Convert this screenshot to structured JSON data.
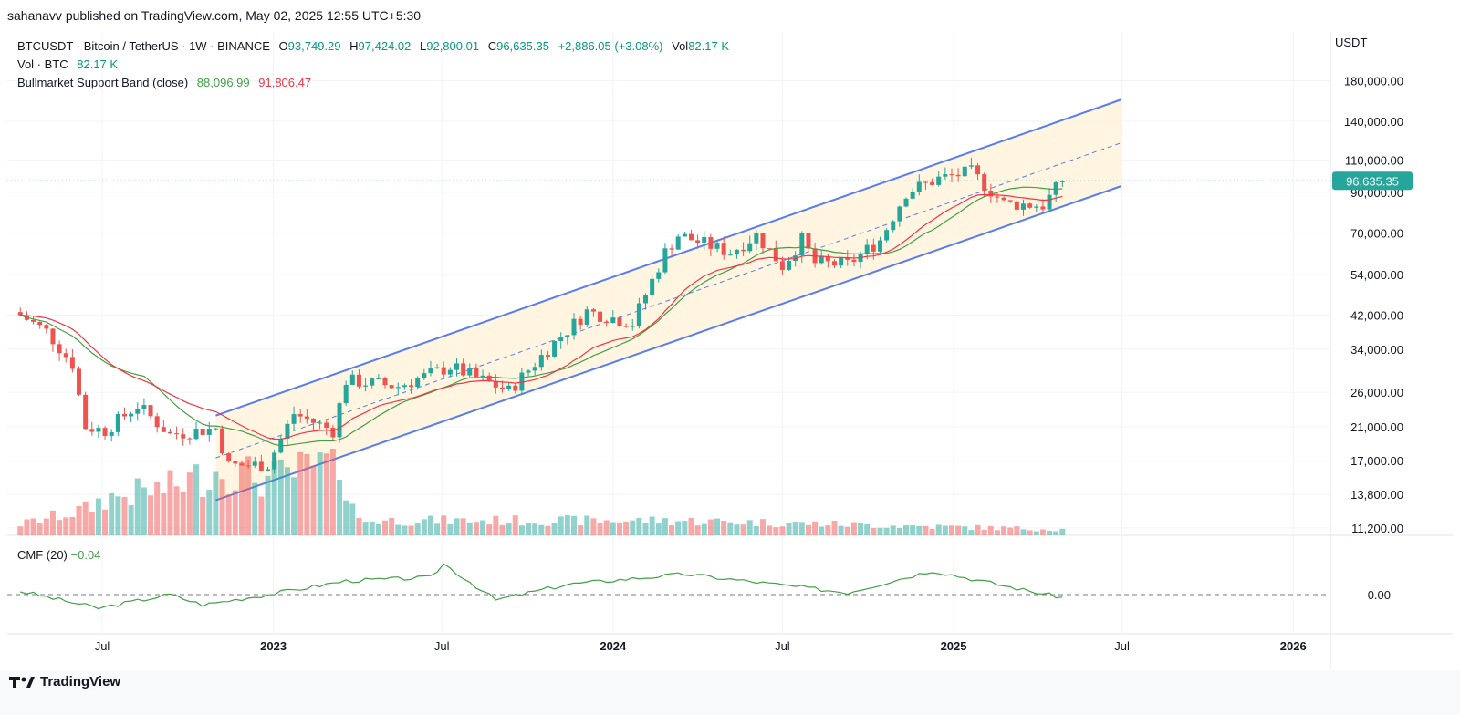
{
  "header": {
    "published": "sahanavv published on TradingView.com, May 02, 2025 12:55 UTC+5:30"
  },
  "legend": {
    "symbol": "BTCUSDT · Bitcoin / TetherUS · 1W · BINANCE",
    "o_label": "O",
    "o": "93,749.29",
    "h_label": "H",
    "h": "97,424.02",
    "l_label": "L",
    "l": "92,800.01",
    "c_label": "C",
    "c": "96,635.35",
    "change": "+2,886.05 (+3.08%)",
    "vol_label": "Vol",
    "vol": "82.17 K",
    "vol_series": "Vol · BTC",
    "vol_value": "82.17 K",
    "band_name": "Bullmarket Support Band (close)",
    "band_sma": "88,096.99",
    "band_ema": "91,806.47"
  },
  "cmf": {
    "label": "CMF (20)",
    "value": "−0.04"
  },
  "footer": {
    "brand": "TradingView"
  },
  "chart_data": {
    "type": "candlestick",
    "currency": "USDT",
    "y_scale": "log",
    "last_price_label": "96,635.35",
    "last_price": 96635.35,
    "y_ticks": [
      {
        "v": 180000,
        "label": "180,000.00"
      },
      {
        "v": 140000,
        "label": "140,000.00"
      },
      {
        "v": 110000,
        "label": "110,000.00"
      },
      {
        "v": 90000,
        "label": "90,000.00"
      },
      {
        "v": 70000,
        "label": "70,000.00"
      },
      {
        "v": 54000,
        "label": "54,000.00"
      },
      {
        "v": 42000,
        "label": "42,000.00"
      },
      {
        "v": 34000,
        "label": "34,000.00"
      },
      {
        "v": 26000,
        "label": "26,000.00"
      },
      {
        "v": 21000,
        "label": "21,000.00"
      },
      {
        "v": 17000,
        "label": "17,000.00"
      },
      {
        "v": 13800,
        "label": "13,800.00"
      },
      {
        "v": 11200,
        "label": "11,200.00"
      }
    ],
    "x_ticks": [
      {
        "date": "2022-07-01",
        "label": "Jul",
        "bold": false
      },
      {
        "date": "2023-01-01",
        "label": "2023",
        "bold": true
      },
      {
        "date": "2023-07-01",
        "label": "Jul",
        "bold": false
      },
      {
        "date": "2024-01-01",
        "label": "2024",
        "bold": true
      },
      {
        "date": "2024-07-01",
        "label": "Jul",
        "bold": false
      },
      {
        "date": "2025-01-01",
        "label": "2025",
        "bold": true
      },
      {
        "date": "2025-07-01",
        "label": "Jul",
        "bold": false
      },
      {
        "date": "2026-01-01",
        "label": "2026",
        "bold": true
      }
    ],
    "channel": {
      "upper": [
        {
          "date": "2022-10-31",
          "price": 22500
        },
        {
          "date": "2025-06-30",
          "price": 160000
        }
      ],
      "lower": [
        {
          "date": "2022-10-31",
          "price": 13300
        },
        {
          "date": "2025-06-30",
          "price": 93500
        }
      ]
    },
    "price_path": [
      {
        "date": "2022-04-04",
        "price": 42000
      },
      {
        "date": "2022-05-02",
        "price": 38000
      },
      {
        "date": "2022-05-30",
        "price": 31000
      },
      {
        "date": "2022-06-13",
        "price": 21000
      },
      {
        "date": "2022-07-04",
        "price": 20500
      },
      {
        "date": "2022-08-08",
        "price": 24000
      },
      {
        "date": "2022-09-12",
        "price": 20000
      },
      {
        "date": "2022-10-31",
        "price": 20800
      },
      {
        "date": "2022-11-14",
        "price": 16500
      },
      {
        "date": "2022-12-26",
        "price": 16600
      },
      {
        "date": "2023-01-23",
        "price": 22800
      },
      {
        "date": "2023-03-06",
        "price": 20500
      },
      {
        "date": "2023-03-20",
        "price": 28000
      },
      {
        "date": "2023-05-15",
        "price": 27000
      },
      {
        "date": "2023-07-10",
        "price": 30500
      },
      {
        "date": "2023-09-11",
        "price": 26200
      },
      {
        "date": "2023-10-23",
        "price": 34000
      },
      {
        "date": "2023-12-04",
        "price": 43000
      },
      {
        "date": "2024-01-22",
        "price": 40000
      },
      {
        "date": "2024-02-26",
        "price": 62000
      },
      {
        "date": "2024-03-11",
        "price": 69000
      },
      {
        "date": "2024-05-06",
        "price": 62000
      },
      {
        "date": "2024-06-03",
        "price": 69000
      },
      {
        "date": "2024-07-01",
        "price": 57000
      },
      {
        "date": "2024-07-22",
        "price": 67000
      },
      {
        "date": "2024-08-05",
        "price": 58000
      },
      {
        "date": "2024-09-09",
        "price": 57500
      },
      {
        "date": "2024-10-14",
        "price": 67000
      },
      {
        "date": "2024-11-11",
        "price": 90000
      },
      {
        "date": "2024-12-16",
        "price": 98000
      },
      {
        "date": "2025-01-20",
        "price": 102000
      },
      {
        "date": "2025-02-24",
        "price": 84000
      },
      {
        "date": "2025-04-07",
        "price": 83000
      },
      {
        "date": "2025-04-28",
        "price": 96635
      }
    ],
    "volume_path": [
      {
        "date": "2022-04-04",
        "v": 0.15
      },
      {
        "date": "2022-06-13",
        "v": 0.35
      },
      {
        "date": "2022-07-04",
        "v": 0.5
      },
      {
        "date": "2022-09-12",
        "v": 0.65
      },
      {
        "date": "2022-11-07",
        "v": 0.9
      },
      {
        "date": "2022-12-26",
        "v": 0.75
      },
      {
        "date": "2023-03-13",
        "v": 1.0
      },
      {
        "date": "2023-04-03",
        "v": 0.2
      },
      {
        "date": "2024-03-11",
        "v": 0.2
      },
      {
        "date": "2025-04-28",
        "v": 0.08
      }
    ],
    "cmf_path": [
      {
        "date": "2022-04-04",
        "v": 0.05
      },
      {
        "date": "2022-06-27",
        "v": -0.2
      },
      {
        "date": "2022-09-12",
        "v": 0.0
      },
      {
        "date": "2022-10-17",
        "v": -0.15
      },
      {
        "date": "2022-12-26",
        "v": 0.0
      },
      {
        "date": "2023-03-20",
        "v": 0.2
      },
      {
        "date": "2023-06-19",
        "v": 0.25
      },
      {
        "date": "2023-07-03",
        "v": 0.45
      },
      {
        "date": "2023-08-28",
        "v": -0.08
      },
      {
        "date": "2023-11-13",
        "v": 0.15
      },
      {
        "date": "2024-03-18",
        "v": 0.3
      },
      {
        "date": "2024-09-09",
        "v": 0.03
      },
      {
        "date": "2024-12-09",
        "v": 0.35
      },
      {
        "date": "2025-03-24",
        "v": 0.05
      },
      {
        "date": "2025-04-28",
        "v": -0.04
      }
    ],
    "cmf_zero_label": "0.00",
    "legend_placement": "top-left"
  }
}
